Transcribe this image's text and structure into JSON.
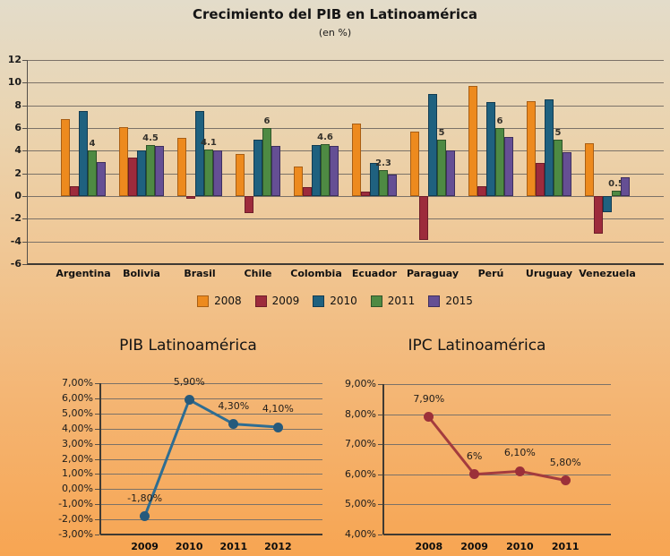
{
  "page": {
    "title": "Crecimiento del PIB en Latinoamérica",
    "subtitle": "(en %)"
  },
  "chart_data": [
    {
      "id": "pib-bar-chart",
      "type": "bar",
      "title": "Crecimiento del PIB en Latinoamérica",
      "subtitle": "(en %)",
      "categories": [
        "Argentina",
        "Bolivia",
        "Brasil",
        "Chile",
        "Colombia",
        "Ecuador",
        "Paraguay",
        "Perú",
        "Uruguay",
        "Venezuela"
      ],
      "series": [
        {
          "name": "2008",
          "color": "#ED8A1E",
          "border": "#A85E14",
          "values": [
            6.8,
            6.1,
            5.1,
            3.7,
            2.6,
            6.4,
            5.7,
            9.7,
            8.4,
            4.7
          ]
        },
        {
          "name": "2009",
          "color": "#9D2B3C",
          "border": "#6E1C29",
          "values": [
            0.9,
            3.4,
            -0.2,
            -1.5,
            0.8,
            0.4,
            -3.9,
            0.9,
            2.9,
            -3.3
          ]
        },
        {
          "name": "2010",
          "color": "#1F617F",
          "border": "#123C52",
          "values": [
            7.5,
            4.0,
            7.5,
            5.0,
            4.5,
            2.9,
            9.0,
            8.3,
            8.5,
            -1.4
          ]
        },
        {
          "name": "2011",
          "color": "#4E8A43",
          "border": "#2F5429",
          "values": [
            4,
            4.5,
            4.1,
            6,
            4.6,
            2.3,
            5,
            6,
            5,
            0.5
          ],
          "value_labels": [
            "4",
            "4.5",
            "4.1",
            "6",
            "4.6",
            "2.3",
            "5",
            "6",
            "5",
            "0.5"
          ]
        },
        {
          "name": "2015",
          "color": "#654F94",
          "border": "#3E2F5E",
          "values": [
            3.0,
            4.4,
            4.0,
            4.4,
            4.4,
            1.9,
            4.0,
            5.2,
            3.9,
            1.7
          ]
        }
      ],
      "ylim": [
        -6,
        12
      ],
      "yticks": [
        12,
        10,
        8,
        6,
        4,
        2,
        0,
        -2,
        -4,
        -6
      ],
      "grid": true,
      "legend_position": "bottom"
    },
    {
      "id": "pib-line-chart",
      "type": "line",
      "title": "PIB Latinoamérica",
      "categories": [
        "2009",
        "2010",
        "2011",
        "2012"
      ],
      "values": [
        -1.8,
        5.9,
        4.3,
        4.1
      ],
      "point_labels": [
        "-1,80%",
        "5,90%",
        "4,30%",
        "4,10%"
      ],
      "yticks": [
        "7,00%",
        "6,00%",
        "5,00%",
        "4,00%",
        "3,00%",
        "2,00%",
        "1,00%",
        "0,00%",
        "-1,00%",
        "-2,00%",
        "-3,00%"
      ],
      "ylim": [
        -3,
        7
      ],
      "grid": true,
      "line_color": "#2E6D92",
      "marker_color": "#265A7C"
    },
    {
      "id": "ipc-line-chart",
      "type": "line",
      "title": "IPC Latinoamérica",
      "categories": [
        "2008",
        "2009",
        "2010",
        "2011"
      ],
      "values": [
        7.9,
        6.0,
        6.1,
        5.8
      ],
      "point_labels": [
        "7,90%",
        "6%",
        "6,10%",
        "5,80%"
      ],
      "yticks": [
        "9,00%",
        "8,00%",
        "7,00%",
        "6,00%",
        "5,00%",
        "4,00%"
      ],
      "ylim": [
        4,
        9
      ],
      "grid": true,
      "line_color": "#A43C3E",
      "marker_color": "#9C3039"
    }
  ]
}
